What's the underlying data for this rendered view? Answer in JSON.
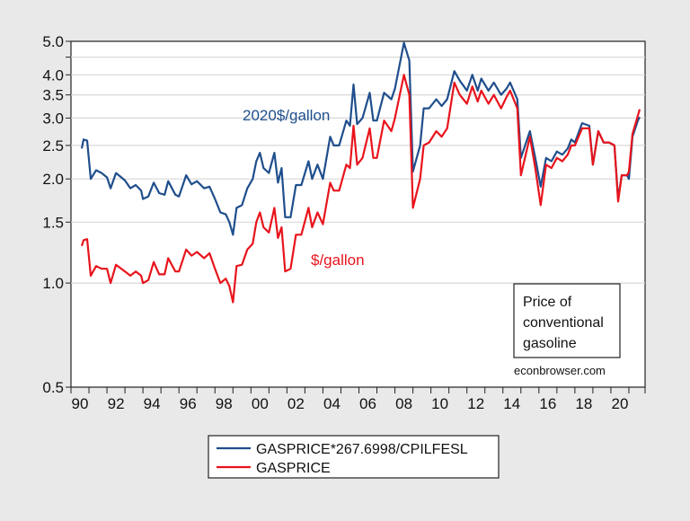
{
  "chart_data": {
    "type": "line",
    "title": "",
    "xlabel": "",
    "ylabel": "",
    "y_scale": "log",
    "ylim": [
      0.5,
      5.0
    ],
    "xlim": [
      1990,
      2021.9
    ],
    "grid": true,
    "legend_placement": "bottom",
    "y_ticks": [
      "0.5",
      "1.0",
      "1.5",
      "2.0",
      "2.5",
      "3.0",
      "3.5",
      "4.0",
      "5.0"
    ],
    "x_ticks": [
      "90",
      "92",
      "94",
      "96",
      "98",
      "00",
      "02",
      "04",
      "06",
      "08",
      "10",
      "12",
      "14",
      "16",
      "18",
      "20"
    ],
    "annotations": {
      "real_label": "2020$/gallon",
      "nominal_label": "$/gallon",
      "box_lines": [
        "Price of",
        "conventional",
        "gasoline"
      ],
      "source": "econbrowser.com"
    },
    "series": [
      {
        "name": "GASPRICE*267.6998/CPILFESL",
        "color": "#1f4e8c",
        "points": [
          [
            1990.6,
            2.45
          ],
          [
            1990.7,
            2.6
          ],
          [
            1990.9,
            2.58
          ],
          [
            1991.1,
            2.0
          ],
          [
            1991.4,
            2.12
          ],
          [
            1991.7,
            2.08
          ],
          [
            1992.0,
            2.02
          ],
          [
            1992.2,
            1.88
          ],
          [
            1992.5,
            2.08
          ],
          [
            1992.8,
            2.02
          ],
          [
            1993.0,
            1.98
          ],
          [
            1993.3,
            1.88
          ],
          [
            1993.6,
            1.92
          ],
          [
            1993.9,
            1.85
          ],
          [
            1994.0,
            1.75
          ],
          [
            1994.3,
            1.78
          ],
          [
            1994.6,
            1.95
          ],
          [
            1994.9,
            1.82
          ],
          [
            1995.2,
            1.8
          ],
          [
            1995.4,
            1.97
          ],
          [
            1995.8,
            1.8
          ],
          [
            1996.0,
            1.78
          ],
          [
            1996.4,
            2.05
          ],
          [
            1996.7,
            1.93
          ],
          [
            1997.0,
            1.97
          ],
          [
            1997.4,
            1.88
          ],
          [
            1997.7,
            1.9
          ],
          [
            1998.0,
            1.75
          ],
          [
            1998.3,
            1.6
          ],
          [
            1998.6,
            1.58
          ],
          [
            1998.8,
            1.5
          ],
          [
            1999.0,
            1.38
          ],
          [
            1999.2,
            1.65
          ],
          [
            1999.5,
            1.68
          ],
          [
            1999.8,
            1.88
          ],
          [
            2000.1,
            2.0
          ],
          [
            2000.3,
            2.25
          ],
          [
            2000.5,
            2.38
          ],
          [
            2000.7,
            2.15
          ],
          [
            2001.0,
            2.08
          ],
          [
            2001.3,
            2.38
          ],
          [
            2001.5,
            1.95
          ],
          [
            2001.7,
            2.15
          ],
          [
            2001.9,
            1.55
          ],
          [
            2002.2,
            1.55
          ],
          [
            2002.5,
            1.92
          ],
          [
            2002.8,
            1.92
          ],
          [
            2003.2,
            2.25
          ],
          [
            2003.4,
            2.0
          ],
          [
            2003.7,
            2.2
          ],
          [
            2004.0,
            2.0
          ],
          [
            2004.4,
            2.65
          ],
          [
            2004.6,
            2.5
          ],
          [
            2004.9,
            2.5
          ],
          [
            2005.3,
            2.95
          ],
          [
            2005.5,
            2.85
          ],
          [
            2005.7,
            3.75
          ],
          [
            2005.9,
            2.88
          ],
          [
            2006.2,
            3.0
          ],
          [
            2006.6,
            3.55
          ],
          [
            2006.8,
            2.95
          ],
          [
            2007.0,
            2.95
          ],
          [
            2007.4,
            3.55
          ],
          [
            2007.8,
            3.4
          ],
          [
            2008.0,
            3.65
          ],
          [
            2008.5,
            4.95
          ],
          [
            2008.8,
            4.4
          ],
          [
            2009.0,
            2.1
          ],
          [
            2009.4,
            2.5
          ],
          [
            2009.6,
            3.2
          ],
          [
            2009.9,
            3.2
          ],
          [
            2010.3,
            3.4
          ],
          [
            2010.6,
            3.25
          ],
          [
            2010.9,
            3.4
          ],
          [
            2011.3,
            4.1
          ],
          [
            2011.6,
            3.85
          ],
          [
            2012.0,
            3.6
          ],
          [
            2012.3,
            4.0
          ],
          [
            2012.6,
            3.6
          ],
          [
            2012.8,
            3.9
          ],
          [
            2013.2,
            3.6
          ],
          [
            2013.5,
            3.8
          ],
          [
            2013.9,
            3.5
          ],
          [
            2014.2,
            3.65
          ],
          [
            2014.4,
            3.8
          ],
          [
            2014.8,
            3.4
          ],
          [
            2015.0,
            2.3
          ],
          [
            2015.5,
            2.75
          ],
          [
            2015.8,
            2.3
          ],
          [
            2016.1,
            1.9
          ],
          [
            2016.4,
            2.3
          ],
          [
            2016.7,
            2.25
          ],
          [
            2017.0,
            2.4
          ],
          [
            2017.3,
            2.35
          ],
          [
            2017.6,
            2.45
          ],
          [
            2017.8,
            2.6
          ],
          [
            2018.0,
            2.55
          ],
          [
            2018.4,
            2.9
          ],
          [
            2018.8,
            2.85
          ],
          [
            2019.0,
            2.2
          ],
          [
            2019.3,
            2.75
          ],
          [
            2019.6,
            2.55
          ],
          [
            2019.9,
            2.55
          ],
          [
            2020.2,
            2.5
          ],
          [
            2020.4,
            1.75
          ],
          [
            2020.6,
            2.05
          ],
          [
            2020.9,
            2.05
          ],
          [
            2021.0,
            2.0
          ],
          [
            2021.2,
            2.65
          ],
          [
            2021.5,
            2.95
          ],
          [
            2021.6,
            3.02
          ]
        ]
      },
      {
        "name": "GASPRICE",
        "color": "#e8141c",
        "points": [
          [
            1990.6,
            1.28
          ],
          [
            1990.7,
            1.33
          ],
          [
            1990.9,
            1.34
          ],
          [
            1991.1,
            1.05
          ],
          [
            1991.4,
            1.12
          ],
          [
            1991.7,
            1.1
          ],
          [
            1992.0,
            1.1
          ],
          [
            1992.2,
            1.0
          ],
          [
            1992.5,
            1.13
          ],
          [
            1992.8,
            1.1
          ],
          [
            1993.0,
            1.08
          ],
          [
            1993.3,
            1.05
          ],
          [
            1993.6,
            1.08
          ],
          [
            1993.9,
            1.05
          ],
          [
            1994.0,
            1.0
          ],
          [
            1994.3,
            1.02
          ],
          [
            1994.6,
            1.15
          ],
          [
            1994.9,
            1.06
          ],
          [
            1995.2,
            1.06
          ],
          [
            1995.4,
            1.18
          ],
          [
            1995.8,
            1.08
          ],
          [
            1996.0,
            1.08
          ],
          [
            1996.4,
            1.25
          ],
          [
            1996.7,
            1.2
          ],
          [
            1997.0,
            1.23
          ],
          [
            1997.4,
            1.18
          ],
          [
            1997.7,
            1.22
          ],
          [
            1998.0,
            1.1
          ],
          [
            1998.3,
            1.0
          ],
          [
            1998.6,
            1.03
          ],
          [
            1998.8,
            0.98
          ],
          [
            1999.0,
            0.88
          ],
          [
            1999.2,
            1.12
          ],
          [
            1999.5,
            1.13
          ],
          [
            1999.8,
            1.25
          ],
          [
            2000.1,
            1.3
          ],
          [
            2000.3,
            1.5
          ],
          [
            2000.5,
            1.6
          ],
          [
            2000.7,
            1.45
          ],
          [
            2001.0,
            1.4
          ],
          [
            2001.3,
            1.65
          ],
          [
            2001.5,
            1.35
          ],
          [
            2001.7,
            1.45
          ],
          [
            2001.9,
            1.08
          ],
          [
            2002.2,
            1.1
          ],
          [
            2002.5,
            1.38
          ],
          [
            2002.8,
            1.38
          ],
          [
            2003.2,
            1.65
          ],
          [
            2003.4,
            1.45
          ],
          [
            2003.7,
            1.6
          ],
          [
            2004.0,
            1.48
          ],
          [
            2004.4,
            1.95
          ],
          [
            2004.6,
            1.85
          ],
          [
            2004.9,
            1.85
          ],
          [
            2005.3,
            2.2
          ],
          [
            2005.5,
            2.15
          ],
          [
            2005.7,
            2.85
          ],
          [
            2005.9,
            2.2
          ],
          [
            2006.2,
            2.3
          ],
          [
            2006.6,
            2.8
          ],
          [
            2006.8,
            2.3
          ],
          [
            2007.0,
            2.3
          ],
          [
            2007.4,
            2.95
          ],
          [
            2007.8,
            2.75
          ],
          [
            2008.0,
            3.0
          ],
          [
            2008.5,
            4.0
          ],
          [
            2008.8,
            3.5
          ],
          [
            2009.0,
            1.65
          ],
          [
            2009.4,
            2.0
          ],
          [
            2009.6,
            2.5
          ],
          [
            2009.9,
            2.55
          ],
          [
            2010.3,
            2.75
          ],
          [
            2010.6,
            2.65
          ],
          [
            2010.9,
            2.8
          ],
          [
            2011.3,
            3.8
          ],
          [
            2011.6,
            3.5
          ],
          [
            2012.0,
            3.3
          ],
          [
            2012.3,
            3.7
          ],
          [
            2012.6,
            3.35
          ],
          [
            2012.8,
            3.6
          ],
          [
            2013.2,
            3.3
          ],
          [
            2013.5,
            3.5
          ],
          [
            2013.9,
            3.2
          ],
          [
            2014.2,
            3.45
          ],
          [
            2014.4,
            3.6
          ],
          [
            2014.8,
            3.2
          ],
          [
            2015.0,
            2.05
          ],
          [
            2015.5,
            2.65
          ],
          [
            2015.8,
            2.15
          ],
          [
            2016.1,
            1.68
          ],
          [
            2016.4,
            2.2
          ],
          [
            2016.7,
            2.15
          ],
          [
            2017.0,
            2.3
          ],
          [
            2017.3,
            2.25
          ],
          [
            2017.6,
            2.35
          ],
          [
            2017.8,
            2.5
          ],
          [
            2018.0,
            2.5
          ],
          [
            2018.4,
            2.8
          ],
          [
            2018.8,
            2.8
          ],
          [
            2019.0,
            2.2
          ],
          [
            2019.3,
            2.75
          ],
          [
            2019.6,
            2.55
          ],
          [
            2019.9,
            2.55
          ],
          [
            2020.2,
            2.5
          ],
          [
            2020.4,
            1.72
          ],
          [
            2020.6,
            2.05
          ],
          [
            2020.9,
            2.05
          ],
          [
            2021.0,
            2.1
          ],
          [
            2021.2,
            2.7
          ],
          [
            2021.5,
            3.05
          ],
          [
            2021.6,
            3.18
          ]
        ]
      }
    ]
  }
}
